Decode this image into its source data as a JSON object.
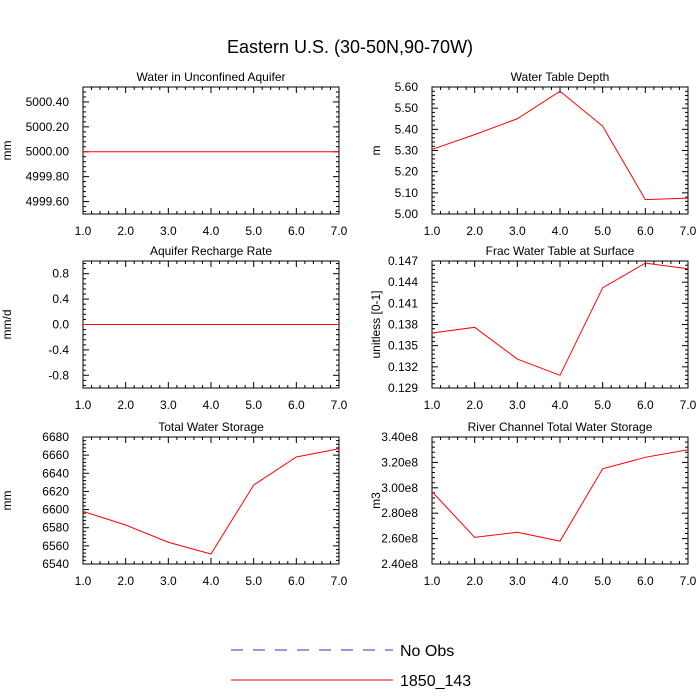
{
  "figure_title": "Eastern U.S. (30-50N,90-70W)",
  "legend": {
    "items": [
      {
        "label": "No Obs",
        "color": "#3030c0",
        "dashed": true
      },
      {
        "label": "1850_143",
        "color": "#ff0000",
        "dashed": false
      }
    ]
  },
  "chart_data": [
    {
      "type": "line",
      "title": "Water in Unconfined Aquifer",
      "ylabel": "mm",
      "xlim": [
        1,
        7
      ],
      "ylim": [
        4999.5,
        5000.52
      ],
      "xticks": [
        1,
        2,
        3,
        4,
        5,
        6,
        7
      ],
      "xtick_labels": [
        "1.0",
        "2.0",
        "3.0",
        "4.0",
        "5.0",
        "6.0",
        "7.0"
      ],
      "yticks": [
        4999.6,
        4999.8,
        5000.0,
        5000.2,
        5000.4
      ],
      "ytick_labels": [
        "4999.60",
        "4999.80",
        "5000.00",
        "5000.20",
        "5000.40"
      ],
      "series": [
        {
          "name": "1850_143",
          "color": "#ff0000",
          "x": [
            1,
            2,
            3,
            4,
            5,
            6,
            7
          ],
          "values": [
            5000,
            5000,
            5000,
            5000,
            5000,
            5000,
            5000
          ]
        }
      ]
    },
    {
      "type": "line",
      "title": "Water Table Depth",
      "ylabel": "m",
      "xlim": [
        1,
        7
      ],
      "ylim": [
        5.0,
        5.6
      ],
      "xticks": [
        1,
        2,
        3,
        4,
        5,
        6,
        7
      ],
      "xtick_labels": [
        "1.0",
        "2.0",
        "3.0",
        "4.0",
        "5.0",
        "6.0",
        "7.0"
      ],
      "yticks": [
        5.0,
        5.1,
        5.2,
        5.3,
        5.4,
        5.5,
        5.6
      ],
      "ytick_labels": [
        "5.00",
        "5.10",
        "5.20",
        "5.30",
        "5.40",
        "5.50",
        "5.60"
      ],
      "series": [
        {
          "name": "1850_143",
          "color": "#ff0000",
          "x": [
            1,
            2,
            3,
            4,
            5,
            6,
            7
          ],
          "values": [
            5.305,
            5.375,
            5.45,
            5.58,
            5.415,
            5.068,
            5.075
          ]
        }
      ]
    },
    {
      "type": "line",
      "title": "Aquifer Recharge Rate",
      "ylabel": "mm/d",
      "xlim": [
        1,
        7
      ],
      "ylim": [
        -1.0,
        1.0
      ],
      "xticks": [
        1,
        2,
        3,
        4,
        5,
        6,
        7
      ],
      "xtick_labels": [
        "1.0",
        "2.0",
        "3.0",
        "4.0",
        "5.0",
        "6.0",
        "7.0"
      ],
      "yticks": [
        -0.8,
        -0.4,
        0.0,
        0.4,
        0.8
      ],
      "ytick_labels": [
        "-0.8",
        "-0.4",
        "0.0",
        "0.4",
        "0.8"
      ],
      "series": [
        {
          "name": "1850_143",
          "color": "#ff0000",
          "x": [
            1,
            2,
            3,
            4,
            5,
            6,
            7
          ],
          "values": [
            0,
            0,
            0,
            0,
            0,
            0,
            0
          ]
        }
      ]
    },
    {
      "type": "line",
      "title": "Frac Water Table at Surface",
      "ylabel": "unitless [0-1]",
      "xlim": [
        1,
        7
      ],
      "ylim": [
        0.129,
        0.147
      ],
      "xticks": [
        1,
        2,
        3,
        4,
        5,
        6,
        7
      ],
      "xtick_labels": [
        "1.0",
        "2.0",
        "3.0",
        "4.0",
        "5.0",
        "6.0",
        "7.0"
      ],
      "yticks": [
        0.129,
        0.132,
        0.135,
        0.138,
        0.141,
        0.144,
        0.147
      ],
      "ytick_labels": [
        "0.129",
        "0.132",
        "0.135",
        "0.138",
        "0.141",
        "0.144",
        "0.147"
      ],
      "series": [
        {
          "name": "1850_143",
          "color": "#ff0000",
          "x": [
            1,
            2,
            3,
            4,
            5,
            6,
            7
          ],
          "values": [
            0.1368,
            0.1376,
            0.1331,
            0.1308,
            0.1432,
            0.1467,
            0.1459
          ]
        }
      ]
    },
    {
      "type": "line",
      "title": "Total Water Storage",
      "ylabel": "mm",
      "xlim": [
        1,
        7
      ],
      "ylim": [
        6540,
        6680
      ],
      "xticks": [
        1,
        2,
        3,
        4,
        5,
        6,
        7
      ],
      "xtick_labels": [
        "1.0",
        "2.0",
        "3.0",
        "4.0",
        "5.0",
        "6.0",
        "7.0"
      ],
      "yticks": [
        6540,
        6560,
        6580,
        6600,
        6620,
        6640,
        6660,
        6680
      ],
      "ytick_labels": [
        "6540",
        "6560",
        "6580",
        "6600",
        "6620",
        "6640",
        "6660",
        "6680"
      ],
      "series": [
        {
          "name": "1850_143",
          "color": "#ff0000",
          "x": [
            1,
            2,
            3,
            4,
            5,
            6,
            7
          ],
          "values": [
            6598,
            6583,
            6564,
            6551,
            6627,
            6658,
            6667
          ]
        }
      ]
    },
    {
      "type": "line",
      "title": "River Channel Total Water Storage",
      "ylabel": "m3",
      "xlim": [
        1,
        7
      ],
      "ylim": [
        240000000,
        340000000
      ],
      "xticks": [
        1,
        2,
        3,
        4,
        5,
        6,
        7
      ],
      "xtick_labels": [
        "1.0",
        "2.0",
        "3.0",
        "4.0",
        "5.0",
        "6.0",
        "7.0"
      ],
      "yticks": [
        240000000,
        260000000,
        280000000,
        300000000,
        320000000,
        340000000
      ],
      "ytick_labels": [
        "2.40e8",
        "2.60e8",
        "2.80e8",
        "3.00e8",
        "3.20e8",
        "3.40e8"
      ],
      "series": [
        {
          "name": "1850_143",
          "color": "#ff0000",
          "x": [
            1,
            2,
            3,
            4,
            5,
            6,
            7
          ],
          "values": [
            297000000,
            261000000,
            265000000,
            258000000,
            315000000,
            324000000,
            330000000
          ]
        }
      ]
    }
  ]
}
